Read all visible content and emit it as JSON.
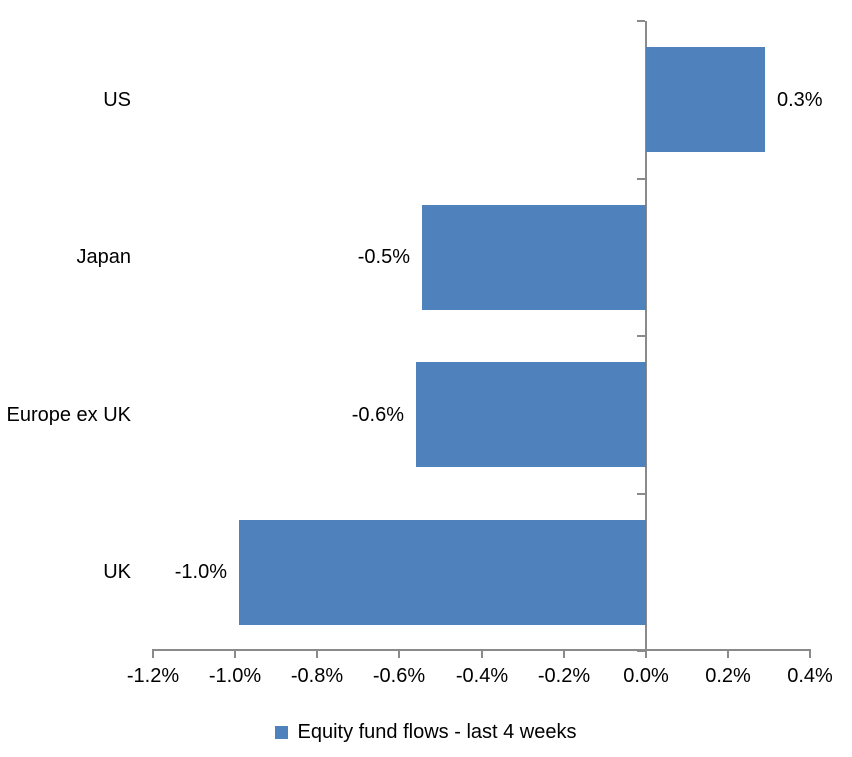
{
  "chart_data": {
    "type": "bar",
    "orientation": "horizontal",
    "title": "",
    "xlabel": "",
    "ylabel": "",
    "categories": [
      "US",
      "Japan",
      "Europe ex UK",
      "UK"
    ],
    "series": [
      {
        "name": "Equity fund flows - last 4 weeks",
        "values": [
          0.29,
          -0.545,
          -0.56,
          -0.99
        ],
        "data_labels": [
          "0.3%",
          "-0.5%",
          "-0.6%",
          "-1.0%"
        ],
        "color": "#4F81BD"
      }
    ],
    "x_axis": {
      "min": -1.2,
      "max": 0.4,
      "tick_step": 0.2,
      "tick_labels": [
        "-1.2%",
        "-1.0%",
        "-0.8%",
        "-0.6%",
        "-0.4%",
        "-0.2%",
        "0.0%",
        "0.2%",
        "0.4%"
      ],
      "unit": "%"
    },
    "grid": false,
    "legend": {
      "position": "bottom-center",
      "entries": [
        {
          "label": "Equity fund flows - last 4 weeks",
          "swatch_color": "#4F81BD"
        }
      ]
    },
    "colors": {
      "bar": "#4F81BD",
      "axis_line": "#8A8A8A",
      "text": "#000000",
      "background": "#FFFFFF"
    }
  }
}
